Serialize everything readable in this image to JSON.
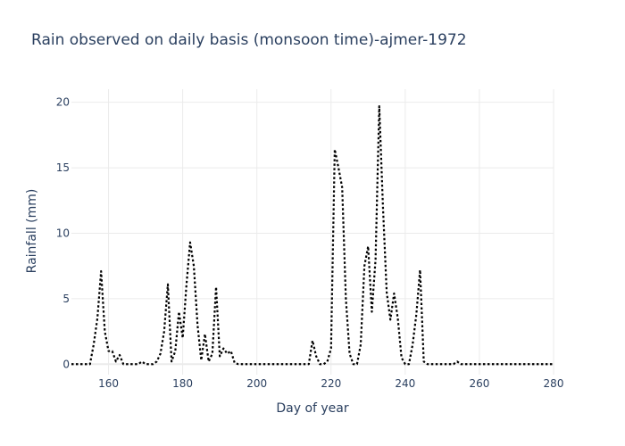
{
  "chart_data": {
    "type": "line",
    "title": "Rain observed on daily basis (monsoon time)-ajmer-1972",
    "xlabel": "Day of year",
    "ylabel": "Rainfall (mm)",
    "xlim": [
      150,
      280
    ],
    "ylim": [
      -0.8,
      21
    ],
    "x_ticks": [
      160,
      180,
      200,
      220,
      240,
      260,
      280
    ],
    "y_ticks": [
      0,
      5,
      10,
      15,
      20
    ],
    "grid": true,
    "series": [
      {
        "line_style": "dotted",
        "color": "#000000",
        "x": [
          150,
          151,
          152,
          153,
          154,
          155,
          156,
          157,
          158,
          159,
          160,
          161,
          162,
          163,
          164,
          165,
          166,
          167,
          168,
          169,
          170,
          171,
          172,
          173,
          174,
          175,
          176,
          177,
          178,
          179,
          180,
          181,
          182,
          183,
          184,
          185,
          186,
          187,
          188,
          189,
          190,
          191,
          192,
          193,
          194,
          195,
          196,
          197,
          198,
          199,
          200,
          201,
          202,
          203,
          204,
          205,
          206,
          207,
          208,
          209,
          210,
          211,
          212,
          213,
          214,
          215,
          216,
          217,
          218,
          219,
          220,
          221,
          222,
          223,
          224,
          225,
          226,
          227,
          228,
          229,
          230,
          231,
          232,
          233,
          234,
          235,
          236,
          237,
          238,
          239,
          240,
          241,
          242,
          243,
          244,
          245,
          246,
          247,
          248,
          249,
          250,
          251,
          252,
          253,
          254,
          255,
          256,
          257,
          258,
          259,
          260,
          261,
          262,
          263,
          264,
          265,
          266,
          267,
          268,
          269,
          270,
          271,
          272,
          273,
          274,
          275,
          276,
          277,
          278,
          279,
          280
        ],
        "values": [
          0,
          0,
          0,
          0,
          0,
          0,
          1.5,
          3.5,
          7.1,
          2.5,
          1.0,
          1.0,
          0.2,
          0.7,
          0,
          0,
          0,
          0,
          0,
          0.2,
          0,
          0,
          0,
          0.2,
          0.8,
          2.5,
          6.1,
          0.2,
          1.0,
          4.0,
          2.0,
          6.0,
          9.3,
          7.5,
          3.0,
          0.3,
          2.3,
          0.2,
          0.8,
          5.9,
          0.6,
          1.2,
          0.8,
          1.0,
          0.1,
          0,
          0,
          0,
          0,
          0,
          0,
          0,
          0,
          0,
          0,
          0,
          0,
          0,
          0,
          0,
          0,
          0,
          0,
          0,
          0,
          1.8,
          0.6,
          0,
          0,
          0.2,
          1.2,
          16.4,
          15.0,
          13.5,
          5.0,
          0.8,
          0,
          0,
          1.5,
          7.5,
          9.0,
          4.0,
          8.0,
          19.7,
          12.0,
          5.5,
          3.4,
          5.4,
          3.5,
          0.5,
          0,
          0,
          1.5,
          3.8,
          7.2,
          0.2,
          0,
          0,
          0,
          0,
          0,
          0,
          0,
          0,
          0.2,
          0,
          0,
          0,
          0,
          0,
          0,
          0,
          0,
          0,
          0,
          0,
          0,
          0,
          0,
          0,
          0,
          0,
          0,
          0,
          0,
          0,
          0,
          0,
          0,
          0,
          0
        ]
      }
    ]
  }
}
